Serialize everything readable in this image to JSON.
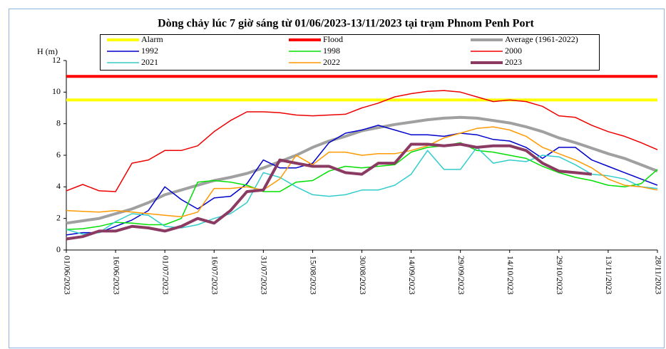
{
  "chart_data": {
    "type": "line",
    "title": "Dòng chảy lúc 7 giờ sáng từ 01/06/2023-13/11/2023 tại trạm Phnom Penh Port",
    "y_label": "H (m)",
    "x": [
      "01/06/2023",
      "06/06/2023",
      "11/06/2023",
      "16/06/2023",
      "21/06/2023",
      "26/06/2023",
      "01/07/2023",
      "06/07/2023",
      "11/07/2023",
      "16/07/2023",
      "21/07/2023",
      "26/07/2023",
      "31/07/2023",
      "05/08/2023",
      "10/08/2023",
      "15/08/2023",
      "20/08/2023",
      "25/08/2023",
      "30/08/2023",
      "04/09/2023",
      "09/09/2023",
      "14/09/2023",
      "19/09/2023",
      "24/09/2023",
      "29/09/2023",
      "04/10/2023",
      "09/10/2023",
      "14/10/2023",
      "19/10/2023",
      "24/10/2023",
      "29/10/2023",
      "03/11/2023",
      "08/11/2023",
      "13/11/2023",
      "18/11/2023",
      "23/11/2023",
      "28/11/2023"
    ],
    "xlim": [
      "01/06/2023",
      "28/11/2023"
    ],
    "xticks": [
      "01/06/2023",
      "16/06/2023",
      "01/07/2023",
      "16/07/2023",
      "31/07/2023",
      "15/08/2023",
      "30/08/2023",
      "14/09/2023",
      "29/09/2023",
      "14/10/2023",
      "29/10/2023",
      "13/11/2023",
      "28/11/2023"
    ],
    "ylim": [
      0,
      12
    ],
    "yticks": [
      0,
      2,
      4,
      6,
      8,
      10,
      12
    ],
    "grid": false,
    "series": [
      {
        "name": "Alarm",
        "color": "#ffff00",
        "values": [
          9.5,
          9.5,
          9.5,
          9.5,
          9.5,
          9.5,
          9.5,
          9.5,
          9.5,
          9.5,
          9.5,
          9.5,
          9.5,
          9.5,
          9.5,
          9.5,
          9.5,
          9.5,
          9.5,
          9.5,
          9.5,
          9.5,
          9.5,
          9.5,
          9.5,
          9.5,
          9.5,
          9.5,
          9.5,
          9.5,
          9.5,
          9.5,
          9.5,
          9.5,
          9.5,
          9.5,
          9.5
        ]
      },
      {
        "name": "Flood",
        "color": "#ff0000",
        "values": [
          11,
          11,
          11,
          11,
          11,
          11,
          11,
          11,
          11,
          11,
          11,
          11,
          11,
          11,
          11,
          11,
          11,
          11,
          11,
          11,
          11,
          11,
          11,
          11,
          11,
          11,
          11,
          11,
          11,
          11,
          11,
          11,
          11,
          11,
          11,
          11,
          11
        ]
      },
      {
        "name": "Average (1961-2022)",
        "color": "#a0a0a0",
        "values": [
          1.7,
          1.85,
          2.0,
          2.3,
          2.6,
          3.0,
          3.5,
          3.8,
          4.1,
          4.4,
          4.6,
          4.85,
          5.2,
          5.6,
          6.0,
          6.5,
          6.9,
          7.2,
          7.55,
          7.75,
          7.95,
          8.1,
          8.25,
          8.35,
          8.4,
          8.35,
          8.2,
          8.05,
          7.8,
          7.5,
          7.1,
          6.8,
          6.45,
          6.1,
          5.8,
          5.4,
          5.0
        ]
      },
      {
        "name": "1992",
        "color": "#0000cc",
        "values": [
          0.95,
          1.1,
          1.1,
          1.5,
          1.9,
          2.5,
          4.0,
          3.2,
          2.6,
          3.3,
          3.4,
          4.2,
          5.7,
          5.2,
          5.2,
          5.5,
          6.8,
          7.4,
          7.6,
          7.9,
          7.6,
          7.3,
          7.3,
          7.2,
          7.4,
          7.3,
          7.0,
          6.9,
          6.5,
          5.8,
          6.5,
          6.5,
          5.7,
          5.3,
          4.9,
          4.5,
          4.1
        ]
      },
      {
        "name": "1998",
        "color": "#00e000",
        "values": [
          1.3,
          1.35,
          1.5,
          1.75,
          1.7,
          1.6,
          1.6,
          2.0,
          4.3,
          4.4,
          4.3,
          4.1,
          3.7,
          3.7,
          4.3,
          4.4,
          5.0,
          5.3,
          5.2,
          5.3,
          5.4,
          6.2,
          6.5,
          6.6,
          6.8,
          6.3,
          6.2,
          6.0,
          5.8,
          5.3,
          4.9,
          4.6,
          4.4,
          4.1,
          4.0,
          4.2,
          5.1
        ]
      },
      {
        "name": "2000",
        "color": "#ee0000",
        "values": [
          3.75,
          4.15,
          3.75,
          3.7,
          5.5,
          5.7,
          6.3,
          6.3,
          6.6,
          7.5,
          8.2,
          8.75,
          8.75,
          8.7,
          8.55,
          8.5,
          8.55,
          8.6,
          9.0,
          9.3,
          9.7,
          9.9,
          10.05,
          10.1,
          10.0,
          9.7,
          9.4,
          9.5,
          9.4,
          9.1,
          8.5,
          8.4,
          7.9,
          7.5,
          7.2,
          6.8,
          6.35
        ]
      },
      {
        "name": "2021",
        "color": "#33cccc",
        "values": [
          1.3,
          1.0,
          1.1,
          1.8,
          2.3,
          2.2,
          1.5,
          1.4,
          1.6,
          2.0,
          2.3,
          3.0,
          4.9,
          4.6,
          4.0,
          3.5,
          3.4,
          3.5,
          3.8,
          3.8,
          4.1,
          4.8,
          6.3,
          5.1,
          5.1,
          6.5,
          5.5,
          5.7,
          5.6,
          6.0,
          5.9,
          5.4,
          4.8,
          4.7,
          4.5,
          4.0,
          3.9
        ]
      },
      {
        "name": "2022",
        "color": "#ff9900",
        "values": [
          2.5,
          2.45,
          2.4,
          2.5,
          2.4,
          2.3,
          2.2,
          2.1,
          2.4,
          3.9,
          3.9,
          4.0,
          3.8,
          4.5,
          6.0,
          5.4,
          6.2,
          6.2,
          6.0,
          6.1,
          6.1,
          6.3,
          6.6,
          7.1,
          7.4,
          7.7,
          7.8,
          7.6,
          7.2,
          6.5,
          6.1,
          5.7,
          5.2,
          4.5,
          4.1,
          4.0,
          3.8
        ]
      },
      {
        "name": "2023",
        "color": "#8b3a62",
        "values": [
          0.7,
          0.85,
          1.2,
          1.2,
          1.5,
          1.4,
          1.2,
          1.5,
          2.0,
          1.7,
          2.5,
          3.7,
          3.8,
          5.7,
          5.5,
          5.3,
          5.3,
          4.9,
          4.8,
          5.5,
          5.5,
          6.7,
          6.7,
          6.6,
          6.7,
          6.5,
          6.6,
          6.6,
          6.3,
          5.5,
          5.0,
          4.9,
          4.8,
          null,
          null,
          null,
          null
        ]
      }
    ]
  }
}
